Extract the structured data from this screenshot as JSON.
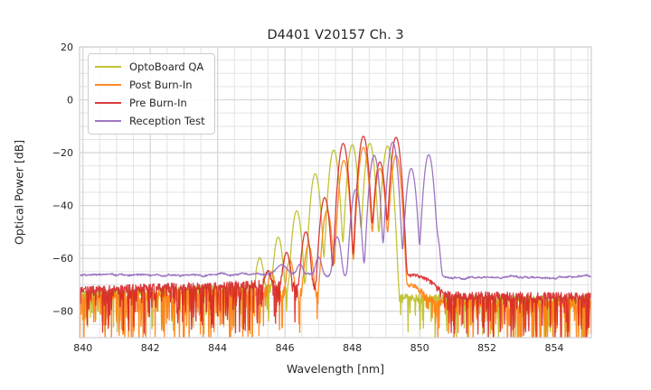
{
  "chart_data": {
    "type": "line",
    "title": "D4401 V20157 Ch. 3",
    "xlabel": "Wavelength [nm]",
    "ylabel": "Optical Power [dB]",
    "xlim": [
      839.9,
      855.1
    ],
    "ylim": [
      -90,
      20
    ],
    "xtick_values": [
      840,
      842,
      844,
      846,
      848,
      850,
      852,
      854
    ],
    "xtick_labels": [
      "840",
      "842",
      "844",
      "846",
      "848",
      "850",
      "852",
      "854"
    ],
    "ytick_values": [
      20,
      0,
      -20,
      -40,
      -60,
      -80
    ],
    "ytick_labels": [
      "20",
      "0",
      "−20",
      "−40",
      "−60",
      "−80"
    ],
    "grid": {
      "show": true,
      "x_minor_step_nm": 0.5,
      "y_minor_step_db": 5,
      "major_color": "#d7d7db",
      "minor_color": "#e3e3e7",
      "frame_color": "#cfcfd4"
    },
    "legend": {
      "position": "upper-left"
    },
    "text_color": "#262626",
    "line_opacity": 0.9,
    "line_width": 1.3,
    "mode_sigma_nm": 0.065,
    "series": [
      {
        "name": "OptoBoard QA",
        "color": "#bcbd22",
        "seed": 11,
        "noise_floor_db": [
          [
            839.9,
            -73.5
          ],
          [
            845.2,
            -71.0
          ],
          [
            849.8,
            -75.0
          ],
          [
            855.1,
            -75.5
          ]
        ],
        "noise": {
          "jitter_db": 1.3,
          "spike_prob": 0.32,
          "spike_max_db": 16,
          "smooth": false
        },
        "modes": [
          [
            845.25,
            -60
          ],
          [
            845.8,
            -52
          ],
          [
            846.35,
            -42
          ],
          [
            846.9,
            -28
          ],
          [
            847.45,
            -19
          ],
          [
            848.0,
            -17
          ],
          [
            848.52,
            -16.5
          ],
          [
            849.05,
            -17.5
          ]
        ]
      },
      {
        "name": "Post Burn-In",
        "color": "#ff7f0e",
        "seed": 22,
        "noise_floor_db": [
          [
            839.9,
            -74.5
          ],
          [
            845.2,
            -72.5
          ],
          [
            850.0,
            -76.5
          ],
          [
            855.1,
            -77.0
          ]
        ],
        "noise": {
          "jitter_db": 1.6,
          "spike_prob": 0.45,
          "spike_max_db": 22,
          "smooth": false
        },
        "modes": [
          [
            845.6,
            -66
          ],
          [
            846.15,
            -61
          ],
          [
            846.7,
            -55
          ],
          [
            847.25,
            -42
          ],
          [
            847.75,
            -23
          ],
          [
            848.33,
            -18
          ],
          [
            848.82,
            -26
          ],
          [
            849.3,
            -21
          ],
          [
            849.75,
            -71,
            0.25
          ]
        ]
      },
      {
        "name": "Pre Burn-In",
        "color": "#d62728",
        "seed": 33,
        "noise_floor_db": [
          [
            839.9,
            -72.0
          ],
          [
            845.2,
            -69.8
          ],
          [
            850.2,
            -74.0
          ],
          [
            855.1,
            -74.5
          ]
        ],
        "noise": {
          "jitter_db": 1.5,
          "spike_prob": 0.35,
          "spike_max_db": 17,
          "smooth": false
        },
        "modes": [
          [
            845.5,
            -66
          ],
          [
            846.05,
            -58
          ],
          [
            846.62,
            -50
          ],
          [
            847.18,
            -37
          ],
          [
            847.73,
            -16.5
          ],
          [
            848.33,
            -13.8
          ],
          [
            848.82,
            -23.5
          ],
          [
            849.3,
            -14.2
          ],
          [
            849.8,
            -67,
            0.3
          ],
          [
            850.3,
            -72,
            0.2
          ]
        ]
      },
      {
        "name": "Reception Test",
        "color": "#9467bd",
        "seed": 44,
        "noise_floor_db": [
          [
            839.9,
            -66.4
          ],
          [
            846.0,
            -65.9
          ],
          [
            850.8,
            -67.3
          ],
          [
            855.1,
            -66.8
          ]
        ],
        "noise": {
          "jitter_db": 0.25,
          "spike_prob": 0,
          "spike_max_db": 0,
          "smooth": true
        },
        "modes": [
          [
            845.9,
            -65.5,
            0.12
          ],
          [
            846.45,
            -64.5
          ],
          [
            847.0,
            -60.5
          ],
          [
            847.55,
            -52
          ],
          [
            848.1,
            -34
          ],
          [
            848.65,
            -21
          ],
          [
            849.2,
            -16
          ],
          [
            849.75,
            -26
          ],
          [
            850.27,
            -20.8
          ],
          [
            850.52,
            -52,
            0.05
          ]
        ]
      }
    ]
  }
}
